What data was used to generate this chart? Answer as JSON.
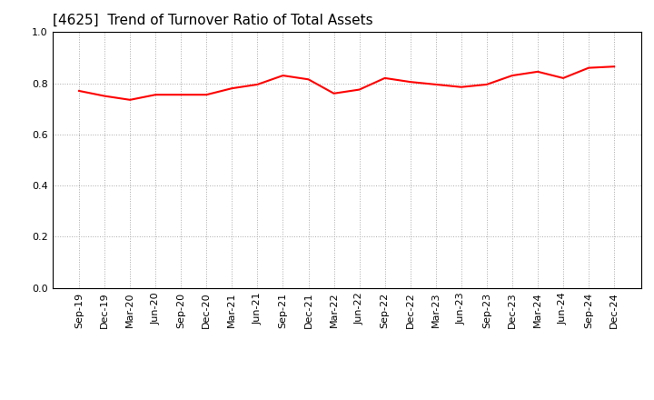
{
  "title": "[4625]  Trend of Turnover Ratio of Total Assets",
  "x_labels": [
    "Sep-19",
    "Dec-19",
    "Mar-20",
    "Jun-20",
    "Sep-20",
    "Dec-20",
    "Mar-21",
    "Jun-21",
    "Sep-21",
    "Dec-21",
    "Mar-22",
    "Jun-22",
    "Sep-22",
    "Dec-22",
    "Mar-23",
    "Jun-23",
    "Sep-23",
    "Dec-23",
    "Mar-24",
    "Jun-24",
    "Sep-24",
    "Dec-24"
  ],
  "y_values": [
    0.77,
    0.75,
    0.735,
    0.755,
    0.755,
    0.755,
    0.78,
    0.795,
    0.83,
    0.815,
    0.76,
    0.775,
    0.82,
    0.805,
    0.795,
    0.785,
    0.795,
    0.83,
    0.845,
    0.82,
    0.86,
    0.865
  ],
  "line_color": "#ff0000",
  "line_width": 1.5,
  "ylim": [
    0.0,
    1.0
  ],
  "yticks": [
    0.0,
    0.2,
    0.4,
    0.6,
    0.8,
    1.0
  ],
  "ytick_labels": [
    "0.0",
    "0.2",
    "0.4",
    "0.6",
    "0.8",
    "1.0"
  ],
  "background_color": "#ffffff",
  "plot_bg_color": "#ffffff",
  "grid_color": "#aaaaaa",
  "title_fontsize": 11,
  "tick_fontsize": 8
}
